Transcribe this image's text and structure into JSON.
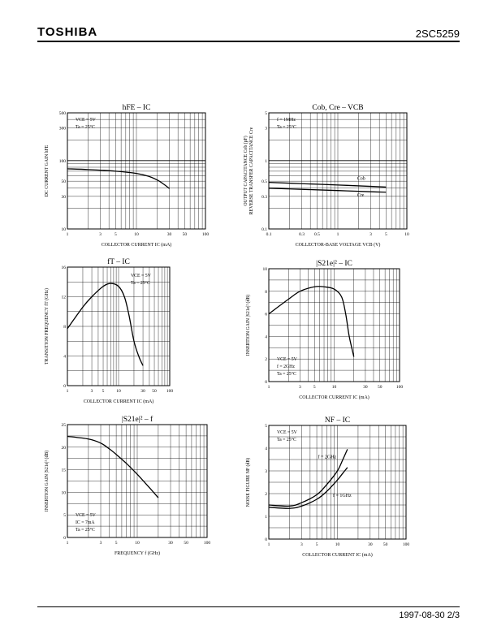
{
  "header": {
    "brand": "TOSHIBA",
    "part": "2SC5259"
  },
  "footer": {
    "date_page": "1997-08-30   2/3"
  },
  "colors": {
    "ink": "#000000",
    "background": "#ffffff"
  },
  "chart_data": [
    {
      "type": "line",
      "title": "hFE – IC",
      "xlabel": "COLLECTOR CURRENT   IC   (mA)",
      "ylabel": "DC CURRENT GAIN   hFE",
      "xscale": "log",
      "yscale": "log",
      "xlim": [
        1,
        100
      ],
      "ylim": [
        10,
        500
      ],
      "xticks": [
        [
          1,
          "1"
        ],
        [
          3,
          "3"
        ],
        [
          5,
          "5"
        ],
        [
          10,
          "10"
        ],
        [
          30,
          "30"
        ],
        [
          50,
          "50"
        ],
        [
          100,
          "100"
        ]
      ],
      "yticks": [
        [
          10,
          "10"
        ],
        [
          30,
          "30"
        ],
        [
          50,
          "50"
        ],
        [
          100,
          "100"
        ],
        [
          300,
          "300"
        ],
        [
          500,
          "500"
        ]
      ],
      "conditions": [
        "VCE = 5V",
        "Ta = 25°C"
      ],
      "grid": true,
      "series": [
        {
          "x": [
            1,
            2,
            5,
            10,
            15,
            20,
            25,
            30
          ],
          "y": [
            76,
            74,
            70,
            65,
            59,
            52,
            45,
            39
          ]
        }
      ],
      "annotations": []
    },
    {
      "type": "line",
      "title": "Cob, Cre – VCB",
      "xlabel": "COLLECTOR-BASE VOLTAGE   VCB   (V)",
      "ylabel": "OUTPUT CAPACITANCE   Cob   (pF) / REVERSE TRANSFER CAPACITANCE   Cre",
      "xscale": "log",
      "yscale": "log",
      "xlim": [
        0.1,
        10
      ],
      "ylim": [
        0.1,
        5
      ],
      "xticks": [
        [
          0.1,
          "0.1"
        ],
        [
          0.3,
          "0.3"
        ],
        [
          0.5,
          "0.5"
        ],
        [
          1,
          "1"
        ],
        [
          3,
          "3"
        ],
        [
          5,
          "5"
        ],
        [
          10,
          "10"
        ]
      ],
      "yticks": [
        [
          0.1,
          "0.1"
        ],
        [
          0.3,
          "0.3"
        ],
        [
          0.5,
          "0.5"
        ],
        [
          1,
          "1"
        ],
        [
          3,
          "3"
        ],
        [
          5,
          "5"
        ]
      ],
      "conditions": [
        "f = 1MHz",
        "Ta = 25°C"
      ],
      "grid": true,
      "series": [
        {
          "name": "Cob",
          "x": [
            0.1,
            0.3,
            1,
            3,
            5
          ],
          "y": [
            0.48,
            0.46,
            0.44,
            0.42,
            0.41
          ]
        },
        {
          "name": "Cre",
          "x": [
            0.1,
            0.3,
            1,
            3,
            5
          ],
          "y": [
            0.395,
            0.38,
            0.365,
            0.35,
            0.345
          ]
        }
      ],
      "annotations": [
        {
          "text": "Cob",
          "x": 1.9,
          "y": 0.52
        },
        {
          "text": "Cre",
          "x": 1.9,
          "y": 0.3
        }
      ]
    },
    {
      "type": "line",
      "title": "fT – IC",
      "xlabel": "COLLECTOR CURRENT   IC   (mA)",
      "ylabel": "TRANSITION FREQUENCY   fT   (GHz)",
      "xscale": "log",
      "yscale": "linear",
      "xlim": [
        1,
        100
      ],
      "ylim": [
        0,
        16
      ],
      "xticks": [
        [
          1,
          "1"
        ],
        [
          3,
          "3"
        ],
        [
          5,
          "5"
        ],
        [
          10,
          "10"
        ],
        [
          30,
          "30"
        ],
        [
          50,
          "50"
        ],
        [
          100,
          "100"
        ]
      ],
      "yticks": [
        [
          0,
          "0"
        ],
        [
          4,
          "4"
        ],
        [
          8,
          "8"
        ],
        [
          12,
          "12"
        ],
        [
          16,
          "16"
        ]
      ],
      "conditions": [
        "VCE = 5V",
        "Ta = 25°C"
      ],
      "grid": true,
      "series": [
        {
          "x": [
            1,
            2,
            3,
            5,
            7,
            10,
            13,
            16,
            20,
            25,
            30
          ],
          "y": [
            7.7,
            10.6,
            12.0,
            13.4,
            13.8,
            13.4,
            12.0,
            9.5,
            6.0,
            3.9,
            2.7
          ]
        }
      ],
      "annotations": []
    },
    {
      "type": "line",
      "title": "|S21e|² – IC",
      "xlabel": "COLLECTOR CURRENT   IC   (mA)",
      "ylabel": "INSERTION GAIN   |S21e|²   (dB)",
      "xscale": "log",
      "yscale": "linear",
      "xlim": [
        1,
        100
      ],
      "ylim": [
        0,
        10
      ],
      "xticks": [
        [
          1,
          "1"
        ],
        [
          3,
          "3"
        ],
        [
          5,
          "5"
        ],
        [
          10,
          "10"
        ],
        [
          30,
          "30"
        ],
        [
          50,
          "50"
        ],
        [
          100,
          "100"
        ]
      ],
      "yticks": [
        [
          0,
          "0"
        ],
        [
          2,
          "2"
        ],
        [
          4,
          "4"
        ],
        [
          6,
          "6"
        ],
        [
          8,
          "8"
        ],
        [
          10,
          "10"
        ]
      ],
      "conditions": [
        "VCE = 5V",
        "f = 2GHz",
        "Ta = 25°C"
      ],
      "grid": true,
      "series": [
        {
          "x": [
            1,
            2,
            3,
            5,
            7,
            10,
            13,
            15,
            17,
            20
          ],
          "y": [
            6.0,
            7.3,
            8.0,
            8.4,
            8.4,
            8.2,
            7.5,
            6.0,
            4.0,
            2.2
          ]
        }
      ],
      "annotations": []
    },
    {
      "type": "line",
      "title": "|S21e|² – f",
      "xlabel": "FREQUENCY   f   (GHz)",
      "ylabel": "INSERTION GAIN   |S21e|²   (dB)",
      "xscale": "log",
      "yscale": "linear",
      "xlim": [
        1,
        100
      ],
      "ylim": [
        0,
        25
      ],
      "xticks": [
        [
          1,
          "1"
        ],
        [
          3,
          "3"
        ],
        [
          5,
          "5"
        ],
        [
          10,
          "10"
        ],
        [
          30,
          "30"
        ],
        [
          50,
          "50"
        ],
        [
          100,
          "100"
        ]
      ],
      "yticks": [
        [
          0,
          "0"
        ],
        [
          5,
          "5"
        ],
        [
          10,
          "10"
        ],
        [
          15,
          "15"
        ],
        [
          20,
          "20"
        ],
        [
          25,
          "25"
        ]
      ],
      "conditions": [
        "VCE = 5V",
        "IC = 7mA",
        "Ta = 25°C"
      ],
      "grid": true,
      "series": [
        {
          "x": [
            1,
            2,
            3,
            4,
            5,
            7,
            10,
            15,
            20
          ],
          "y": [
            22.4,
            21.8,
            20.9,
            19.6,
            18.4,
            16.4,
            14.0,
            11.0,
            8.8
          ]
        }
      ],
      "annotations": []
    },
    {
      "type": "line",
      "title": "NF – IC",
      "xlabel": "COLLECTOR CURRENT   IC   (mA)",
      "ylabel": "NOISE FIGURE   NF   (dB)",
      "xscale": "log",
      "yscale": "linear",
      "xlim": [
        1,
        100
      ],
      "ylim": [
        0,
        5
      ],
      "xticks": [
        [
          1,
          "1"
        ],
        [
          3,
          "3"
        ],
        [
          5,
          "5"
        ],
        [
          10,
          "10"
        ],
        [
          30,
          "30"
        ],
        [
          50,
          "50"
        ],
        [
          100,
          "100"
        ]
      ],
      "yticks": [
        [
          0,
          "0"
        ],
        [
          1,
          "1"
        ],
        [
          2,
          "2"
        ],
        [
          3,
          "3"
        ],
        [
          4,
          "4"
        ],
        [
          5,
          "5"
        ]
      ],
      "conditions": [
        "VCE = 5V",
        "Ta = 25°C"
      ],
      "grid": true,
      "series": [
        {
          "name": "f = 2GHz",
          "x": [
            1,
            2,
            3,
            5,
            7,
            10,
            12,
            14
          ],
          "y": [
            1.5,
            1.45,
            1.6,
            1.95,
            2.4,
            3.0,
            3.5,
            3.95
          ]
        },
        {
          "name": "f = 1GHz",
          "x": [
            1,
            2,
            3,
            5,
            7,
            10,
            12,
            14
          ],
          "y": [
            1.4,
            1.35,
            1.45,
            1.75,
            2.1,
            2.6,
            2.9,
            3.15
          ]
        }
      ],
      "annotations": [
        {
          "text": "f = 2GHz",
          "x": 5.2,
          "y": 3.55
        },
        {
          "text": "f = 1GHz",
          "x": 8.6,
          "y": 1.85
        }
      ]
    }
  ]
}
